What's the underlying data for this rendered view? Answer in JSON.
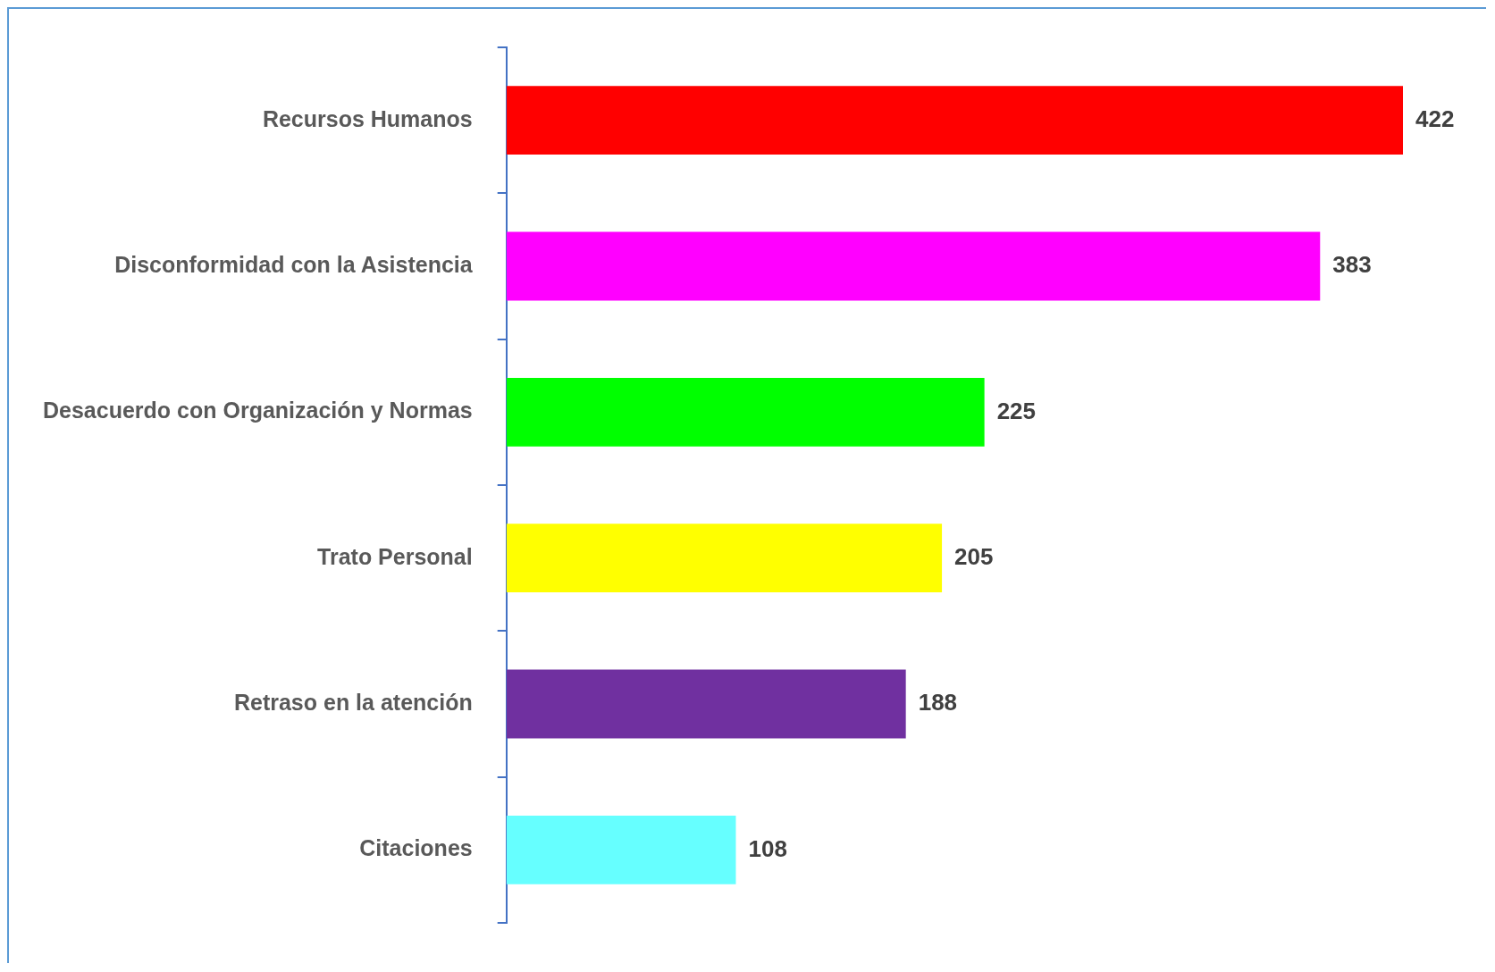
{
  "chart_data": {
    "type": "bar",
    "orientation": "horizontal",
    "categories": [
      "Recursos Humanos",
      "Disconformidad con la Asistencia",
      "Desacuerdo con Organización y Normas",
      "Trato Personal",
      "Retraso en la atención",
      "Citaciones"
    ],
    "values": [
      422,
      383,
      225,
      205,
      188,
      108
    ],
    "colors": [
      "#ff0000",
      "#ff00ff",
      "#00ff00",
      "#ffff00",
      "#7030a0",
      "#66ffff"
    ],
    "data_labels": true,
    "legend": false
  }
}
